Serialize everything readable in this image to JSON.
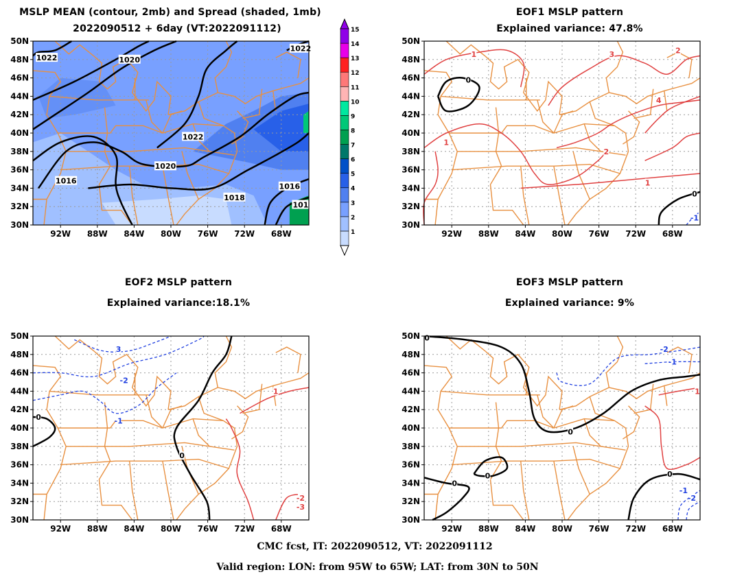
{
  "panels": {
    "mean": {
      "title1": "MSLP MEAN (contour, 2mb) and Spread (shaded, 1mb)",
      "title2": "2022090512 + 6day (VT:2022091112)",
      "contour_labels": [
        "1022",
        "1020",
        "1022",
        "1022",
        "1020",
        "1016",
        "1018",
        "1016",
        "101"
      ]
    },
    "eof1": {
      "title1": "EOF1 MSLP pattern",
      "title2": "Explained variance: 47.8%",
      "contour_labels": [
        "0",
        "1",
        "1",
        "3",
        "2",
        "4",
        "2",
        "1",
        "0",
        "-1"
      ]
    },
    "eof2": {
      "title1": "EOF2 MSLP pattern",
      "title2": "Explained variance:18.1%",
      "contour_labels": [
        "3",
        "-2",
        "-1",
        "0",
        "0",
        "1",
        "-2",
        "-3"
      ]
    },
    "eof3": {
      "title1": "EOF3 MSLP pattern",
      "title2": "Explained variance: 9%",
      "contour_labels": [
        "0",
        "-2",
        "-1",
        "1",
        "0",
        "0",
        "0",
        "0",
        "-1",
        "-2"
      ]
    }
  },
  "map": {
    "lat_ticks": [
      "50N",
      "48N",
      "46N",
      "44N",
      "42N",
      "40N",
      "38N",
      "36N",
      "34N",
      "32N",
      "30N"
    ],
    "lon_ticks": [
      "92W",
      "88W",
      "84W",
      "80W",
      "76W",
      "72W",
      "68W"
    ]
  },
  "colorbar": {
    "levels": [
      "1",
      "2",
      "3",
      "4",
      "5",
      "6",
      "7",
      "8",
      "9",
      "10",
      "11",
      "12",
      "13",
      "14",
      "15"
    ],
    "colors": [
      "#c8dcff",
      "#a0c0ff",
      "#78a0ff",
      "#5080f0",
      "#2860e8",
      "#0050c8",
      "#00786a",
      "#00a050",
      "#00c878",
      "#00e8a0",
      "#ffb4b4",
      "#ff7878",
      "#ff2020",
      "#e800e8",
      "#9000e8"
    ]
  },
  "colors": {
    "states": "#e89040",
    "positive": "#e04040",
    "negative": "#2040e0",
    "zero": "#000000",
    "mean_contour": "#000000"
  },
  "footer": {
    "line1": "CMC fcst, IT: 2022090512, VT: 2022091112",
    "line2": "Valid region: LON: from 95W to 65W; LAT: from 30N to 50N"
  }
}
